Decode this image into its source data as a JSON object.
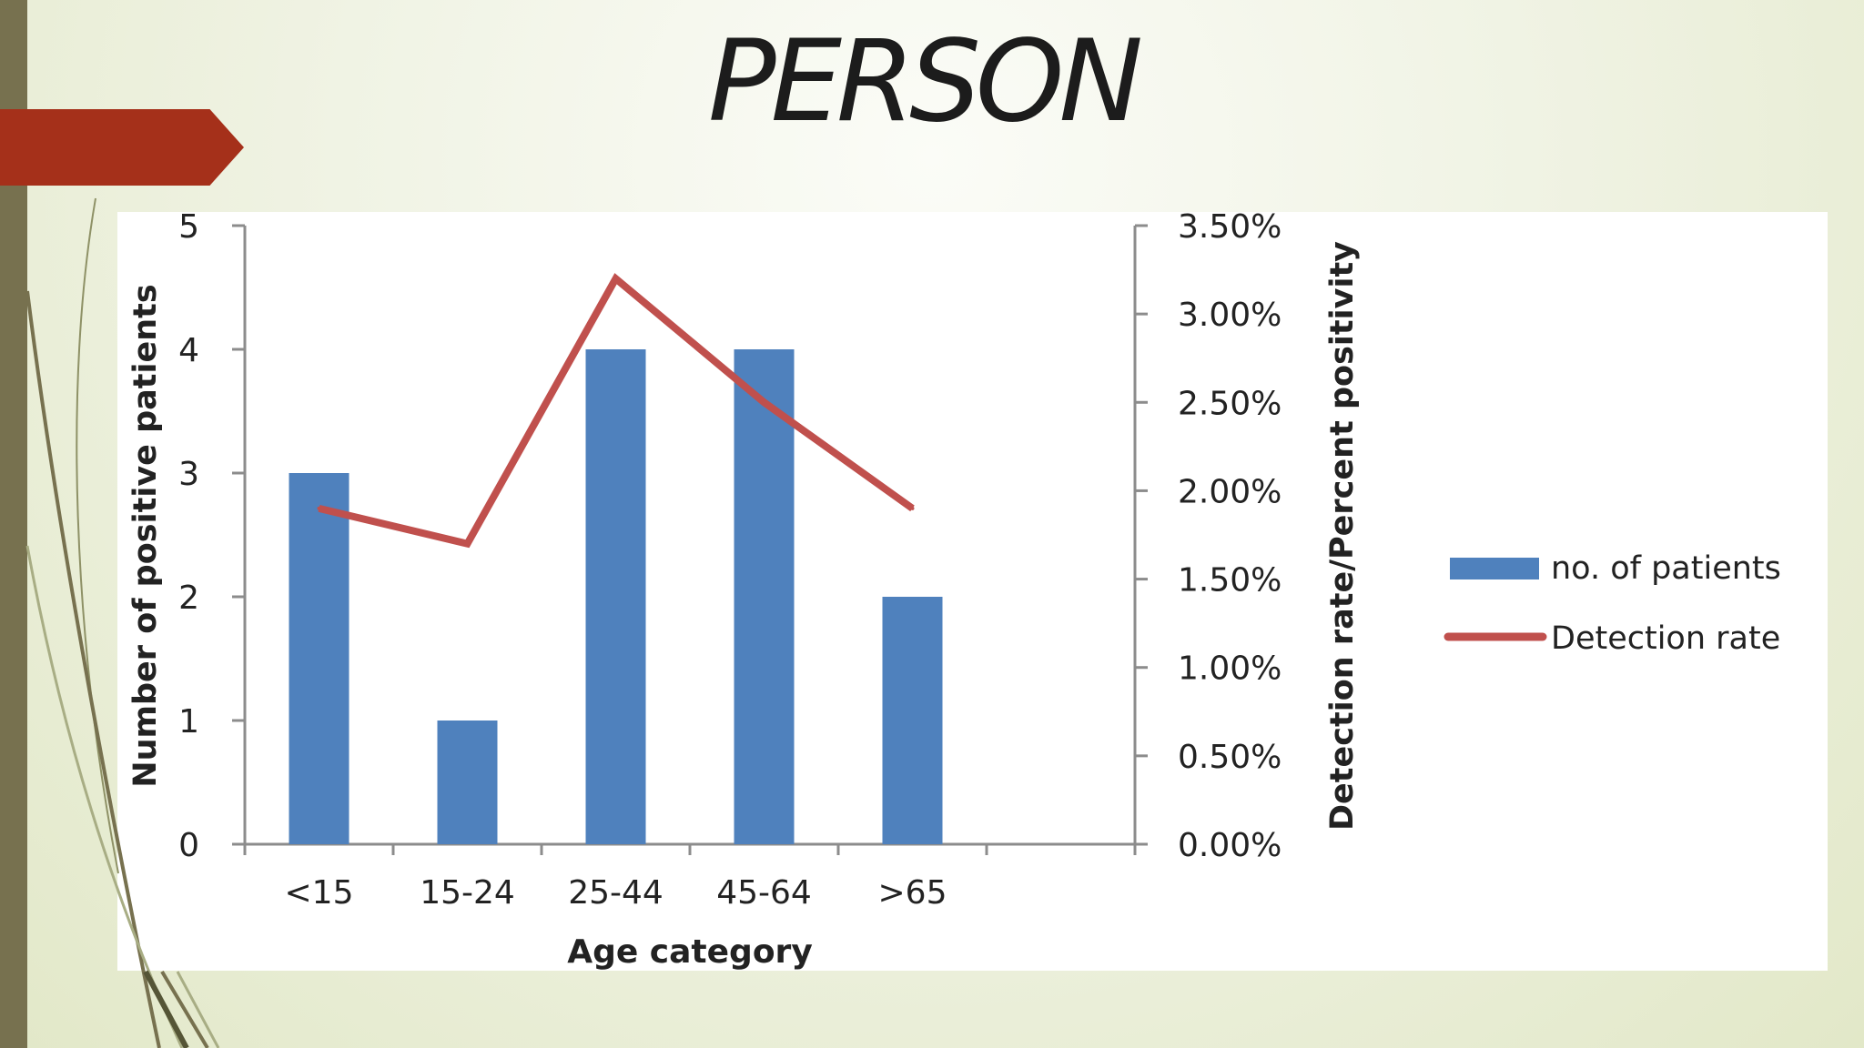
{
  "slide": {
    "title": "PERSON"
  },
  "chart_data": {
    "type": "bar",
    "categories": [
      "<15",
      "15-24",
      "25-44",
      "45-64",
      ">65"
    ],
    "series": [
      {
        "name": "no. of patients",
        "type": "bar",
        "axis": "left",
        "values": [
          3,
          1,
          4,
          4,
          2
        ],
        "color": "#4f81bd"
      },
      {
        "name": "Detection rate",
        "type": "line",
        "axis": "right",
        "values": [
          1.9,
          1.7,
          3.2,
          2.5,
          1.9
        ],
        "color": "#c0504d"
      }
    ],
    "xlabel": "Age category",
    "ylabel": "Number of positive patients",
    "ylabel_right": "Detection rate/Percent positivity",
    "ylim": [
      0,
      5
    ],
    "ylim_right": [
      0,
      3.5
    ],
    "yticks": [
      "0",
      "1",
      "2",
      "3",
      "4",
      "5"
    ],
    "yticks_right": [
      "0.00%",
      "0.50%",
      "1.00%",
      "1.50%",
      "2.00%",
      "2.50%",
      "3.00%",
      "3.50%"
    ],
    "legend_position": "right",
    "grid": false
  }
}
